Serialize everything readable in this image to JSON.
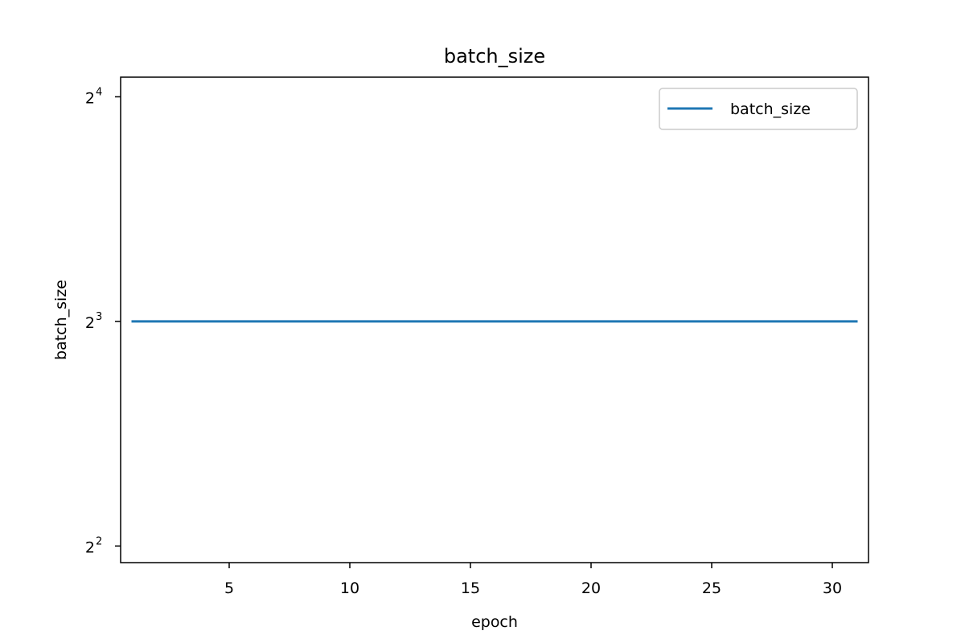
{
  "chart_data": {
    "type": "line",
    "title": "batch_size",
    "xlabel": "epoch",
    "ylabel": "batch_size",
    "x_ticks": [
      5,
      10,
      15,
      20,
      25,
      30
    ],
    "x_tick_labels": [
      "5",
      "10",
      "15",
      "20",
      "25",
      "30"
    ],
    "y_scale": "log2",
    "y_ticks": [
      4,
      8,
      16
    ],
    "y_tick_labels": [
      {
        "base": "2",
        "exp": "2"
      },
      {
        "base": "2",
        "exp": "3"
      },
      {
        "base": "2",
        "exp": "4"
      }
    ],
    "xlim": [
      0.5,
      31.5
    ],
    "ylim": [
      3.8,
      17
    ],
    "grid": false,
    "legend_position": "top-right",
    "series": [
      {
        "name": "batch_size",
        "color": "#1f77b4",
        "x": [
          1,
          2,
          3,
          4,
          5,
          6,
          7,
          8,
          9,
          10,
          11,
          12,
          13,
          14,
          15,
          16,
          17,
          18,
          19,
          20,
          21,
          22,
          23,
          24,
          25,
          26,
          27,
          28,
          29,
          30,
          31
        ],
        "values": [
          8,
          8,
          8,
          8,
          8,
          8,
          8,
          8,
          8,
          8,
          8,
          8,
          8,
          8,
          8,
          8,
          8,
          8,
          8,
          8,
          8,
          8,
          8,
          8,
          8,
          8,
          8,
          8,
          8,
          8,
          8
        ]
      }
    ]
  }
}
